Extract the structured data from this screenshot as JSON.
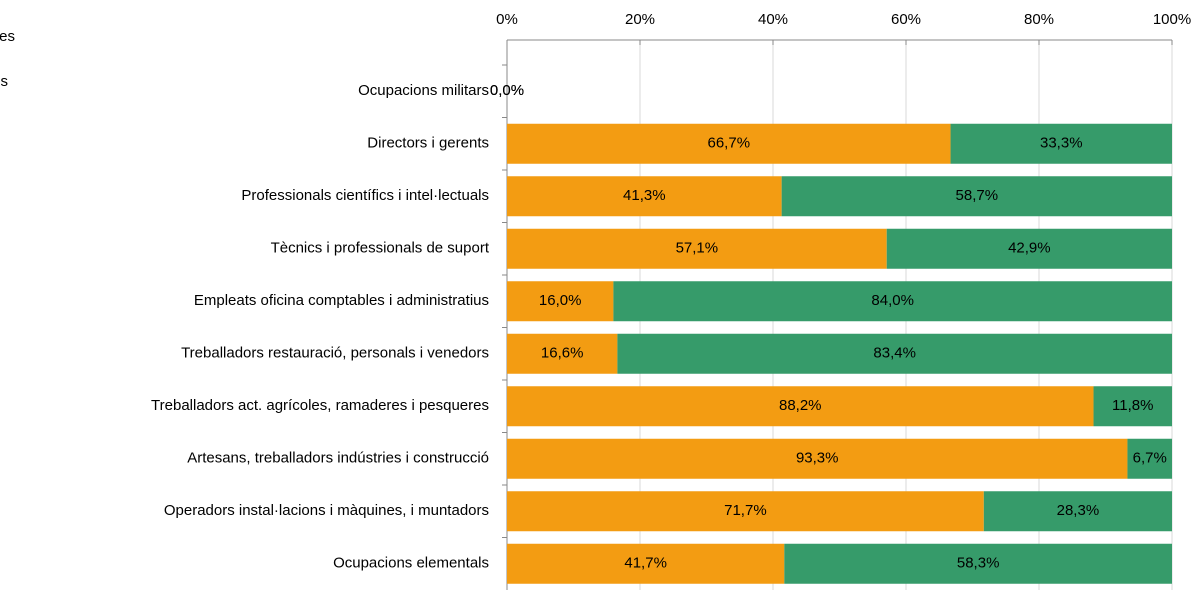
{
  "chart_data": {
    "type": "stacked_barh",
    "categories": [
      "Ocupacions militars",
      "Directors i gerents",
      "Professionals científics i intel·lectuals",
      "Tècnics i professionals de suport",
      "Empleats oficina comptables i administratius",
      "Treballadors restauració, personals i venedors",
      "Treballadors act. agrícoles, ramaderes i pesqueres",
      "Artesans, treballadors indústries i construcció",
      "Operadors instal·lacions i màquines, i muntadors",
      "Ocupacions elementals"
    ],
    "series": [
      {
        "name": "Homes",
        "color": "#f39c12",
        "values": [
          0,
          66.7,
          41.3,
          57.1,
          16.0,
          16.6,
          88.2,
          93.3,
          71.7,
          41.7
        ],
        "value_labels": [
          "0,0%",
          "66,7%",
          "41,3%",
          "57,1%",
          "16,0%",
          "16,6%",
          "88,2%",
          "93,3%",
          "71,7%",
          "41,7%"
        ]
      },
      {
        "name": "Dones",
        "color": "#369b6a",
        "values": [
          0,
          33.3,
          58.7,
          42.9,
          84.0,
          83.4,
          11.8,
          6.7,
          28.3,
          58.3
        ],
        "value_labels": [
          "0,0%",
          "33,3%",
          "58,7%",
          "42,9%",
          "84,0%",
          "83,4%",
          "11,8%",
          "6,7%",
          "28,3%",
          "58,3%"
        ]
      }
    ],
    "xlim": [
      0,
      100
    ],
    "xticks": [
      {
        "value": 0,
        "label": "0%"
      },
      {
        "value": 20,
        "label": "20%"
      },
      {
        "value": 40,
        "label": "40%"
      },
      {
        "value": 60,
        "label": "60%"
      },
      {
        "value": 80,
        "label": "80%"
      },
      {
        "value": 100,
        "label": "100%"
      }
    ],
    "grid": true
  }
}
